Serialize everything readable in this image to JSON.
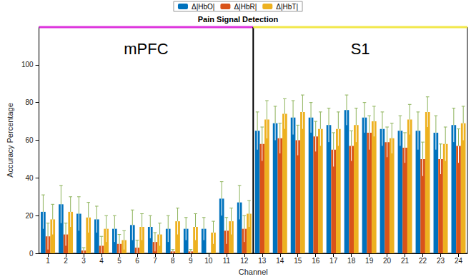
{
  "chart_data": {
    "type": "bar",
    "title": "Pain Signal Detection",
    "x_label": "Channel",
    "y_label": "Accuracy Percentage",
    "categories": [
      "1",
      "2",
      "3",
      "4",
      "5",
      "6",
      "7",
      "8",
      "9",
      "10",
      "11",
      "12",
      "13",
      "14",
      "15",
      "16",
      "17",
      "18",
      "19",
      "20",
      "21",
      "22",
      "23",
      "24"
    ],
    "series": [
      {
        "name": "Δ|HbO|",
        "color": "#0072BD",
        "values": [
          22,
          26,
          21,
          18,
          13,
          15,
          14,
          13,
          13,
          13,
          29,
          27,
          65,
          69,
          72,
          72,
          68,
          76,
          72,
          66,
          65,
          65,
          64,
          68
        ],
        "errors": [
          9,
          10,
          9,
          7,
          7,
          8,
          6,
          7,
          6,
          6,
          9,
          9,
          10,
          9,
          9,
          8,
          9,
          8,
          8,
          9,
          8,
          10,
          9,
          9
        ]
      },
      {
        "name": "Δ|HbR|",
        "color": "#D95319",
        "values": [
          9,
          10,
          1.5,
          4,
          5,
          3,
          6,
          1,
          1,
          0,
          12,
          13,
          58,
          61,
          60,
          62,
          55,
          57,
          64,
          59,
          56,
          50,
          50,
          57
        ],
        "errors": [
          7,
          6,
          1.5,
          5,
          5,
          4,
          5,
          1,
          1,
          0,
          7,
          7,
          9,
          8,
          8,
          8,
          9,
          8,
          9,
          8,
          8,
          9,
          8,
          9
        ]
      },
      {
        "name": "Δ|HbT|",
        "color": "#EDB120",
        "values": [
          18,
          22,
          19,
          13,
          7,
          14,
          10,
          17,
          14,
          11,
          17,
          21,
          71,
          74,
          75,
          66,
          66,
          68,
          70,
          61,
          71,
          75,
          58,
          69
        ],
        "errors": [
          8,
          8,
          8,
          7,
          5,
          7,
          6,
          7,
          7,
          6,
          7,
          7,
          10,
          8,
          9,
          9,
          9,
          9,
          8,
          8,
          8,
          8,
          9,
          9
        ]
      }
    ],
    "annotations": [
      {
        "text": "mPFC",
        "from": "1",
        "to": "12",
        "color": "#DD33DD"
      },
      {
        "text": "S1",
        "from": "13",
        "to": "24",
        "color": "#F2E84A"
      }
    ],
    "ylim": [
      0,
      120
    ],
    "yticks": [
      0,
      20,
      40,
      60,
      80,
      100
    ],
    "legend": "top",
    "grid": false
  }
}
